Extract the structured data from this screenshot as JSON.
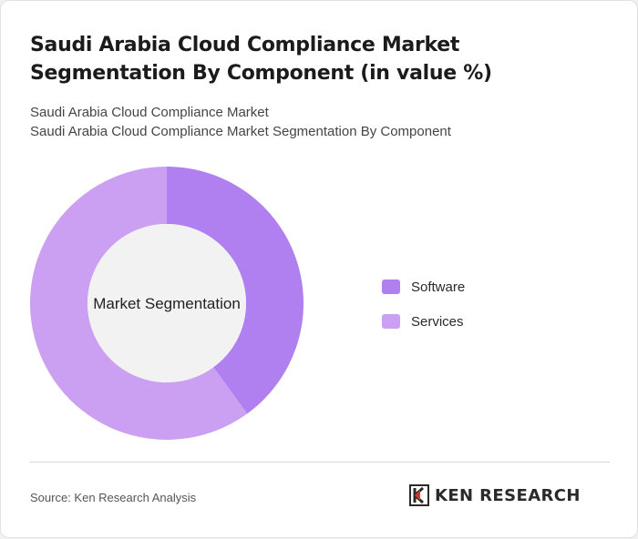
{
  "title": "Saudi Arabia Cloud Compliance Market Segmentation By Component (in value %)",
  "subtitle_1": "Saudi Arabia Cloud Compliance Market",
  "subtitle_2": "Saudi Arabia Cloud Compliance Market Segmentation By Component",
  "source": "Source: Ken Research Analysis",
  "brand": {
    "logo_text": "KEN RESEARCH"
  },
  "colors": {
    "software": "#b07ff0",
    "services": "#cba0f3",
    "center": "#f2f2f2"
  },
  "chart_data": {
    "type": "pie",
    "center_label": "Market Segmentation",
    "categories": [
      "Software",
      "Services"
    ],
    "values": [
      40,
      60
    ]
  }
}
